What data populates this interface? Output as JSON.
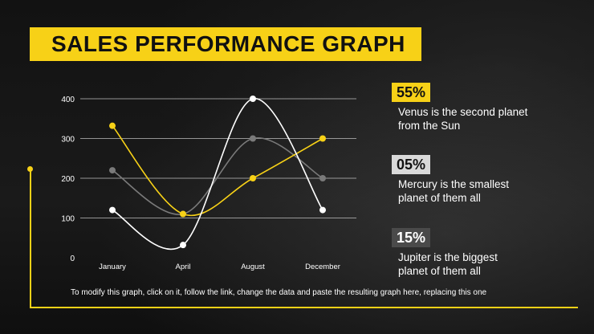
{
  "slide": {
    "title": "SALES PERFORMANCE GRAPH",
    "footnote": "To modify this graph, click on it, follow the link, change the data and paste the resulting graph here, replacing this one"
  },
  "colors": {
    "accent": "#f7d117",
    "grey_series": "#7a7a7a",
    "white_series": "#ffffff",
    "background": "#0e0e0e"
  },
  "stats": [
    {
      "value": "55%",
      "text_line1": "Venus is the second planet",
      "text_line2": "from the Sun"
    },
    {
      "value": "05%",
      "text_line1": "Mercury is the smallest",
      "text_line2": "planet of them all"
    },
    {
      "value": "15%",
      "text_line1": "Jupiter is the biggest",
      "text_line2": "planet of them all"
    }
  ],
  "chart_data": {
    "type": "line",
    "categories": [
      "January",
      "April",
      "August",
      "December"
    ],
    "yticks": [
      "0",
      "100",
      "200",
      "300",
      "400"
    ],
    "ylim": [
      0,
      400
    ],
    "grid": true,
    "smooth": true,
    "series": [
      {
        "color": "#7a7a7a",
        "values": [
          220,
          110,
          300,
          200
        ]
      },
      {
        "color": "#f7d117",
        "values": [
          332,
          110,
          200,
          300
        ]
      },
      {
        "color": "#ffffff",
        "values": [
          120,
          32,
          400,
          120
        ]
      }
    ]
  }
}
